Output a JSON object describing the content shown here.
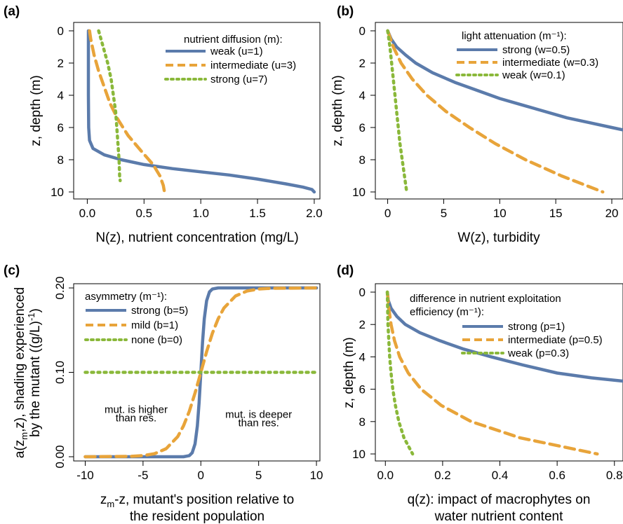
{
  "colors": {
    "blue": "#5b7bab",
    "orange": "#e8a43a",
    "green": "#8ab83a"
  },
  "chart_data": [
    {
      "panel": "(a)",
      "type": "line",
      "xlabel": "N(z), nutrient concentration (mg/L)",
      "ylabel": "z, depth (m)",
      "xlim": [
        -0.12,
        2.05
      ],
      "ylim": [
        0,
        10
      ],
      "y_inverted": true,
      "xticks": [
        "0.0",
        "0.5",
        "1.0",
        "1.5",
        "2.0"
      ],
      "xtick_values": [
        0,
        0.5,
        1.0,
        1.5,
        2.0
      ],
      "yticks": [
        "0",
        "2",
        "4",
        "6",
        "8",
        "10"
      ],
      "ytick_values": [
        0,
        2,
        4,
        6,
        8,
        10
      ],
      "legend_title": "nutrient diffusion (m):",
      "legend_position": "top-right",
      "series": [
        {
          "name": "weak (u=1)",
          "color": "blue",
          "dash": "solid",
          "points": [
            [
              0.01,
              0
            ],
            [
              0.01,
              2
            ],
            [
              0.01,
              4
            ],
            [
              0.012,
              6
            ],
            [
              0.02,
              6.8
            ],
            [
              0.05,
              7.3
            ],
            [
              0.15,
              7.7
            ],
            [
              0.3,
              8.0
            ],
            [
              0.5,
              8.3
            ],
            [
              0.75,
              8.55
            ],
            [
              1.0,
              8.75
            ],
            [
              1.25,
              8.95
            ],
            [
              1.5,
              9.2
            ],
            [
              1.75,
              9.5
            ],
            [
              1.9,
              9.7
            ],
            [
              1.98,
              9.85
            ],
            [
              2.0,
              10
            ]
          ]
        },
        {
          "name": "intermediate  (u=3)",
          "color": "orange",
          "dash": "dashed",
          "points": [
            [
              0.02,
              0
            ],
            [
              0.03,
              0.5
            ],
            [
              0.06,
              1.5
            ],
            [
              0.1,
              2.5
            ],
            [
              0.15,
              3.5
            ],
            [
              0.2,
              4.5
            ],
            [
              0.27,
              5.5
            ],
            [
              0.36,
              6.5
            ],
            [
              0.48,
              7.5
            ],
            [
              0.58,
              8.3
            ],
            [
              0.64,
              9
            ],
            [
              0.67,
              9.6
            ],
            [
              0.68,
              10
            ]
          ]
        },
        {
          "name": "strong (u=7)",
          "color": "green",
          "dash": "dotted",
          "points": [
            [
              0.1,
              0
            ],
            [
              0.14,
              1
            ],
            [
              0.18,
              2
            ],
            [
              0.21,
              3
            ],
            [
              0.23,
              4
            ],
            [
              0.25,
              5
            ],
            [
              0.26,
              6
            ],
            [
              0.27,
              7
            ],
            [
              0.28,
              8
            ],
            [
              0.285,
              9
            ],
            [
              0.29,
              9.3
            ]
          ]
        }
      ]
    },
    {
      "panel": "(b)",
      "type": "line",
      "xlabel": "W(z), turbidity",
      "ylabel": "z, depth (m)",
      "xlim": [
        -1.1,
        21
      ],
      "ylim": [
        0,
        10
      ],
      "y_inverted": true,
      "xticks": [
        "0",
        "5",
        "10",
        "15",
        "20"
      ],
      "xtick_values": [
        0,
        5,
        10,
        15,
        20
      ],
      "yticks": [
        "0",
        "2",
        "4",
        "6",
        "8",
        "10"
      ],
      "ytick_values": [
        0,
        2,
        4,
        6,
        8,
        10
      ],
      "legend_title": "light attenuation (m⁻¹):",
      "legend_position": "top-right",
      "series": [
        {
          "name": "strong (w=0.5)",
          "color": "blue",
          "dash": "solid",
          "points": [
            [
              0,
              0
            ],
            [
              0.3,
              0.5
            ],
            [
              0.8,
              1
            ],
            [
              1.6,
              1.5
            ],
            [
              2.5,
              2
            ],
            [
              4,
              2.6
            ],
            [
              6,
              3.2
            ],
            [
              8,
              3.7
            ],
            [
              10,
              4.2
            ],
            [
              12,
              4.6
            ],
            [
              14,
              5.0
            ],
            [
              16,
              5.4
            ],
            [
              18,
              5.7
            ],
            [
              20,
              6.0
            ],
            [
              21,
              6.15
            ]
          ]
        },
        {
          "name": "intermediate  (w=0.3)",
          "color": "orange",
          "dash": "dashed",
          "points": [
            [
              0,
              0
            ],
            [
              0.5,
              1
            ],
            [
              1.2,
              2
            ],
            [
              2.2,
              3
            ],
            [
              3.5,
              4
            ],
            [
              5.2,
              5
            ],
            [
              7.3,
              6
            ],
            [
              9.6,
              7
            ],
            [
              12.3,
              8
            ],
            [
              15.5,
              9
            ],
            [
              19.2,
              10
            ]
          ]
        },
        {
          "name": "weak (w=0.1)",
          "color": "green",
          "dash": "dotted",
          "points": [
            [
              0,
              0
            ],
            [
              0.2,
              1
            ],
            [
              0.35,
              2
            ],
            [
              0.5,
              3
            ],
            [
              0.65,
              4
            ],
            [
              0.8,
              5
            ],
            [
              0.95,
              6
            ],
            [
              1.1,
              7
            ],
            [
              1.3,
              8
            ],
            [
              1.5,
              9
            ],
            [
              1.7,
              10
            ]
          ]
        }
      ]
    },
    {
      "panel": "(c)",
      "type": "line",
      "xlabel_main": "z",
      "xlabel_sub": "m",
      "xlabel_rest": "-z, mutant's position relative to",
      "xlabel_line2": "the resident population",
      "ylabel_line1_main": "a(z",
      "ylabel_line1_sub": "m",
      "ylabel_line1_rest": ",z), shading experienced",
      "ylabel_line2": "by the mutant ((g/L)",
      "ylabel_line2_sup": "-1",
      "ylabel_line2_end": ")",
      "xlim": [
        -11,
        10.3
      ],
      "ylim": [
        -0.005,
        0.205
      ],
      "xticks": [
        "-10",
        "-5",
        "0",
        "5",
        "10"
      ],
      "xtick_values": [
        -10,
        -5,
        0,
        5,
        10
      ],
      "yticks": [
        "0.00",
        "0.10",
        "0.20"
      ],
      "ytick_values": [
        0,
        0.1,
        0.2
      ],
      "legend_title": "asymmetry (m⁻¹):",
      "legend_position": "top-left",
      "annotations": [
        {
          "text": "mut. is higher",
          "x": -5.6,
          "y": 0.052
        },
        {
          "text": "than res.",
          "x": -5.6,
          "y": 0.042
        },
        {
          "text": "mut. is deeper",
          "x": 5.0,
          "y": 0.046
        },
        {
          "text": "than res.",
          "x": 5.0,
          "y": 0.036
        }
      ],
      "series": [
        {
          "name": "strong (b=5)",
          "color": "blue",
          "dash": "solid",
          "points": [
            [
              -10,
              0
            ],
            [
              -1.5,
              0
            ],
            [
              -1,
              0.0013
            ],
            [
              -0.75,
              0.0046
            ],
            [
              -0.5,
              0.0152
            ],
            [
              -0.3,
              0.0364
            ],
            [
              -0.15,
              0.0642
            ],
            [
              0,
              0.1
            ],
            [
              0.15,
              0.1358
            ],
            [
              0.3,
              0.1636
            ],
            [
              0.5,
              0.1848
            ],
            [
              0.75,
              0.1954
            ],
            [
              1,
              0.1987
            ],
            [
              1.5,
              0.2
            ],
            [
              10,
              0.2
            ]
          ]
        },
        {
          "name": "mild  (b=1)",
          "color": "orange",
          "dash": "dashed",
          "points": [
            [
              -10,
              0
            ],
            [
              -6,
              0.0005
            ],
            [
              -5,
              0.0013
            ],
            [
              -4,
              0.0036
            ],
            [
              -3,
              0.0095
            ],
            [
              -2,
              0.0238
            ],
            [
              -1.5,
              0.0365
            ],
            [
              -1,
              0.0538
            ],
            [
              -0.5,
              0.0755
            ],
            [
              0,
              0.1
            ],
            [
              0.5,
              0.1245
            ],
            [
              1,
              0.1462
            ],
            [
              1.5,
              0.1635
            ],
            [
              2,
              0.1762
            ],
            [
              3,
              0.1905
            ],
            [
              4,
              0.1964
            ],
            [
              5,
              0.1987
            ],
            [
              6,
              0.1995
            ],
            [
              10,
              0.2
            ]
          ]
        },
        {
          "name": "none  (b=0)",
          "color": "green",
          "dash": "dotted",
          "points": [
            [
              -10,
              0.1
            ],
            [
              10,
              0.1
            ]
          ]
        }
      ]
    },
    {
      "panel": "(d)",
      "type": "line",
      "xlabel_line1": "q(z): impact of macrophytes on",
      "xlabel_line2": "water nutrient content",
      "ylabel": "z, depth (m)",
      "xlim": [
        -0.035,
        0.83
      ],
      "ylim": [
        0,
        10
      ],
      "y_inverted": true,
      "xticks": [
        "0.0",
        "0.2",
        "0.4",
        "0.6",
        "0.8"
      ],
      "xtick_values": [
        0,
        0.2,
        0.4,
        0.6,
        0.8
      ],
      "yticks": [
        "0",
        "2",
        "4",
        "6",
        "8",
        "10"
      ],
      "ytick_values": [
        0,
        2,
        4,
        6,
        8,
        10
      ],
      "legend_title_line1": "difference in nutrient exploitation",
      "legend_title_line2": "efficiency (m⁻¹):",
      "legend_position": "top-right",
      "series": [
        {
          "name": "strong (p=1)",
          "color": "blue",
          "dash": "solid",
          "points": [
            [
              0.007,
              0
            ],
            [
              0.01,
              0.5
            ],
            [
              0.02,
              1
            ],
            [
              0.04,
              1.5
            ],
            [
              0.07,
              2
            ],
            [
              0.12,
              2.5
            ],
            [
              0.19,
              3
            ],
            [
              0.27,
              3.5
            ],
            [
              0.37,
              4
            ],
            [
              0.48,
              4.5
            ],
            [
              0.6,
              5
            ],
            [
              0.72,
              5.3
            ],
            [
              0.83,
              5.5
            ]
          ]
        },
        {
          "name": "intermediate  (p=0.5)",
          "color": "orange",
          "dash": "dashed",
          "points": [
            [
              0.007,
              0
            ],
            [
              0.012,
              1
            ],
            [
              0.02,
              2
            ],
            [
              0.032,
              3
            ],
            [
              0.05,
              4
            ],
            [
              0.08,
              5
            ],
            [
              0.125,
              6
            ],
            [
              0.195,
              7
            ],
            [
              0.3,
              8
            ],
            [
              0.47,
              9
            ],
            [
              0.74,
              10
            ]
          ]
        },
        {
          "name": "weak (p=0.3)",
          "color": "green",
          "dash": "dotted",
          "points": [
            [
              0.007,
              0
            ],
            [
              0.008,
              1
            ],
            [
              0.009,
              2
            ],
            [
              0.012,
              3
            ],
            [
              0.015,
              4
            ],
            [
              0.02,
              5
            ],
            [
              0.026,
              6
            ],
            [
              0.035,
              7
            ],
            [
              0.047,
              8
            ],
            [
              0.065,
              9
            ],
            [
              0.095,
              10
            ]
          ]
        }
      ]
    }
  ]
}
